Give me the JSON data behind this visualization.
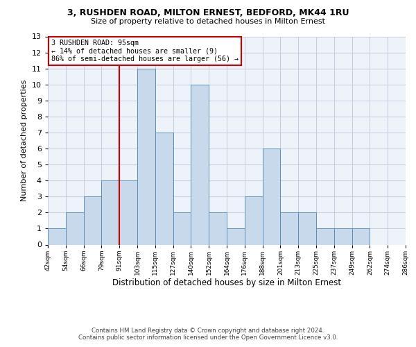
{
  "title1": "3, RUSHDEN ROAD, MILTON ERNEST, BEDFORD, MK44 1RU",
  "title2": "Size of property relative to detached houses in Milton Ernest",
  "xlabel": "Distribution of detached houses by size in Milton Ernest",
  "ylabel": "Number of detached properties",
  "bin_labels": [
    "42sqm",
    "54sqm",
    "66sqm",
    "79sqm",
    "91sqm",
    "103sqm",
    "115sqm",
    "127sqm",
    "140sqm",
    "152sqm",
    "164sqm",
    "176sqm",
    "188sqm",
    "201sqm",
    "213sqm",
    "225sqm",
    "237sqm",
    "249sqm",
    "262sqm",
    "274sqm",
    "286sqm"
  ],
  "bar_heights": [
    1,
    2,
    3,
    4,
    4,
    11,
    7,
    2,
    10,
    2,
    1,
    3,
    6,
    2,
    2,
    1,
    1,
    1,
    0,
    0
  ],
  "bar_color": "#c9d9ec",
  "bar_edge_color": "#5b8db8",
  "reference_line_x": 4,
  "annotation_title": "3 RUSHDEN ROAD: 95sqm",
  "annotation_line1": "← 14% of detached houses are smaller (9)",
  "annotation_line2": "86% of semi-detached houses are larger (56) →",
  "ylim": [
    0,
    13
  ],
  "yticks": [
    0,
    1,
    2,
    3,
    4,
    5,
    6,
    7,
    8,
    9,
    10,
    11,
    12,
    13
  ],
  "footer1": "Contains HM Land Registry data © Crown copyright and database right 2024.",
  "footer2": "Contains public sector information licensed under the Open Government Licence v3.0.",
  "bg_color": "#eef2f9",
  "grid_color": "#bcc8dc"
}
